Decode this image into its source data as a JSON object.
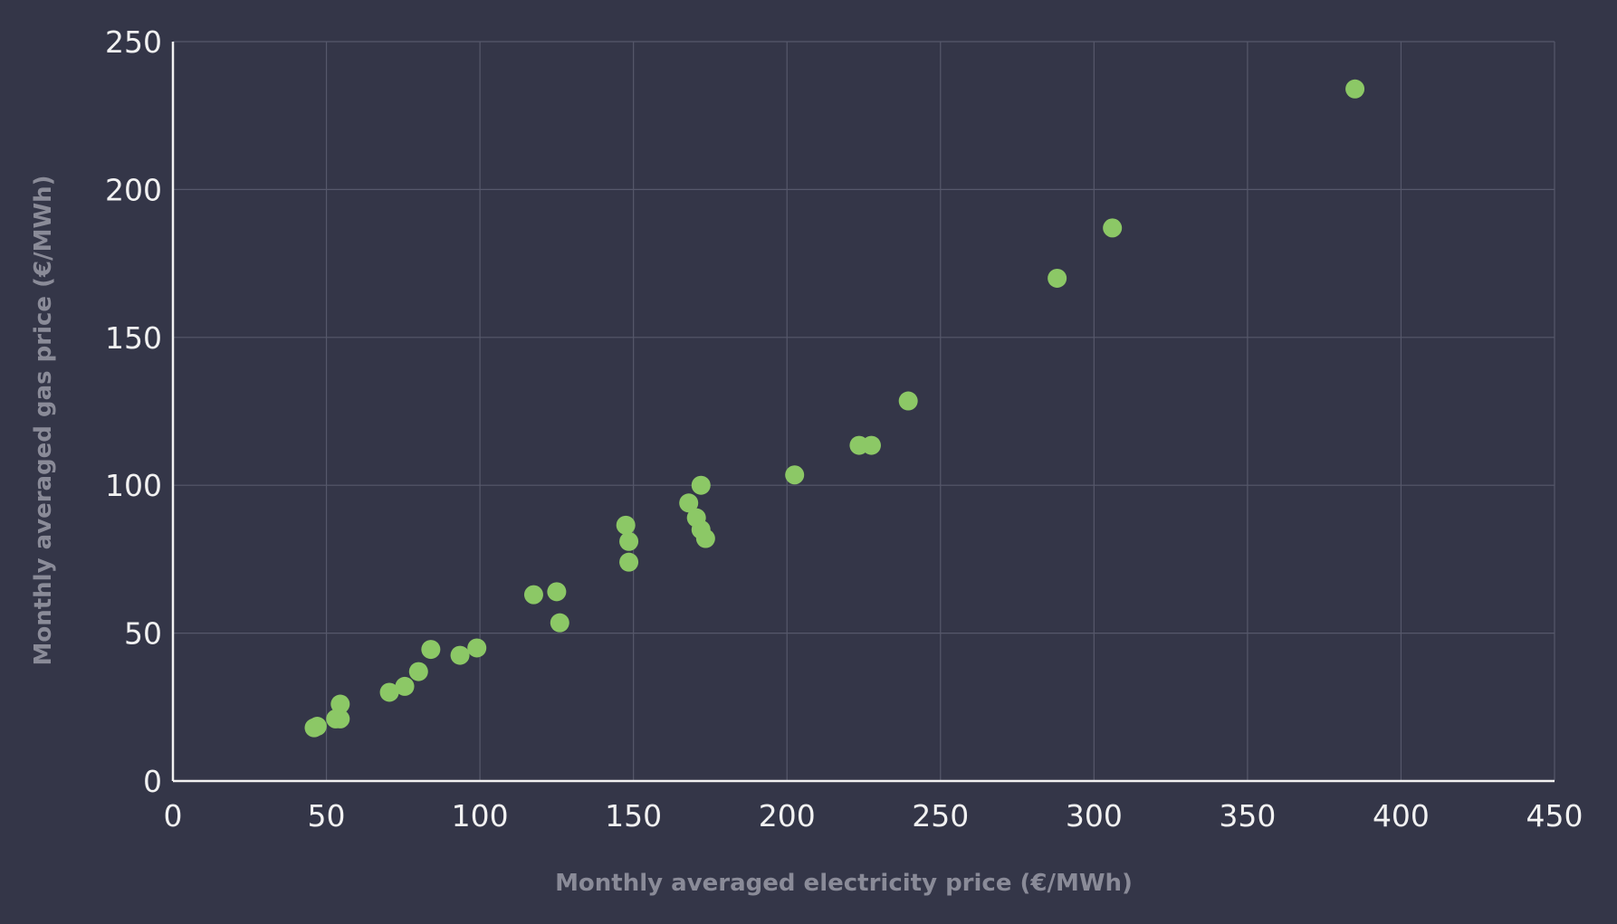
{
  "colors": {
    "background": "#343648",
    "point": "#8cc866",
    "grid": "#56586b",
    "tick_text": "#f2f2f2",
    "axis_title_text": "#8a8b98"
  },
  "chart_data": {
    "type": "scatter",
    "title": "",
    "xlabel": "Monthly averaged electricity price (€/MWh)",
    "ylabel": "Monthly averaged gas price (€/MWh)",
    "xlim": [
      0,
      450
    ],
    "ylim": [
      0,
      250
    ],
    "xticks": [
      0,
      50,
      100,
      150,
      200,
      250,
      300,
      350,
      400,
      450
    ],
    "yticks": [
      0,
      50,
      100,
      150,
      200,
      250
    ],
    "grid": true,
    "legend": "none",
    "series": [
      {
        "points": [
          {
            "x": 46,
            "y": 18
          },
          {
            "x": 47,
            "y": 18.5
          },
          {
            "x": 53,
            "y": 21
          },
          {
            "x": 54.5,
            "y": 21
          },
          {
            "x": 54.5,
            "y": 26
          },
          {
            "x": 70.5,
            "y": 30
          },
          {
            "x": 75.5,
            "y": 32
          },
          {
            "x": 80,
            "y": 37
          },
          {
            "x": 84,
            "y": 44.5
          },
          {
            "x": 93.5,
            "y": 42.5
          },
          {
            "x": 99,
            "y": 45
          },
          {
            "x": 117.5,
            "y": 63
          },
          {
            "x": 125,
            "y": 64
          },
          {
            "x": 126,
            "y": 53.5
          },
          {
            "x": 147.5,
            "y": 86.5
          },
          {
            "x": 148.5,
            "y": 81
          },
          {
            "x": 148.5,
            "y": 74
          },
          {
            "x": 168,
            "y": 94
          },
          {
            "x": 170.5,
            "y": 89
          },
          {
            "x": 172,
            "y": 100
          },
          {
            "x": 172,
            "y": 85
          },
          {
            "x": 173.5,
            "y": 82
          },
          {
            "x": 202.5,
            "y": 103.5
          },
          {
            "x": 223.5,
            "y": 113.5
          },
          {
            "x": 227.5,
            "y": 113.5
          },
          {
            "x": 239.5,
            "y": 128.5
          },
          {
            "x": 288,
            "y": 170
          },
          {
            "x": 306,
            "y": 187
          },
          {
            "x": 385,
            "y": 234
          }
        ]
      }
    ]
  }
}
